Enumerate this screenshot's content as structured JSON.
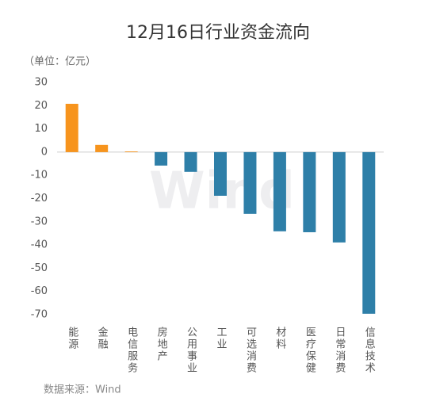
{
  "chart_data": {
    "type": "bar",
    "title": "12月16日行业资金流向",
    "unit": "（单位：亿元）",
    "source": "数据来源：Wind",
    "watermark": "Wind",
    "categories": [
      "能源",
      "金融",
      "电信服务",
      "房地产",
      "公用事业",
      "工业",
      "可选消费",
      "材料",
      "医疗保健",
      "日常消费",
      "信息技术"
    ],
    "values": [
      20.8,
      3.1,
      0.3,
      -5.8,
      -8.5,
      -18.8,
      -26.6,
      -34.1,
      -34.5,
      -38.9,
      -69.6
    ],
    "colors": [
      "#f7941d",
      "#f7941d",
      "#f7941d",
      "#2e7fa8",
      "#2e7fa8",
      "#2e7fa8",
      "#2e7fa8",
      "#2e7fa8",
      "#2e7fa8",
      "#2e7fa8",
      "#2e7fa8"
    ],
    "ylim": [
      -70,
      30
    ],
    "yticks": [
      30,
      20,
      10,
      0,
      -10,
      -20,
      -30,
      -40,
      -50,
      -60,
      -70
    ],
    "grid": false
  }
}
